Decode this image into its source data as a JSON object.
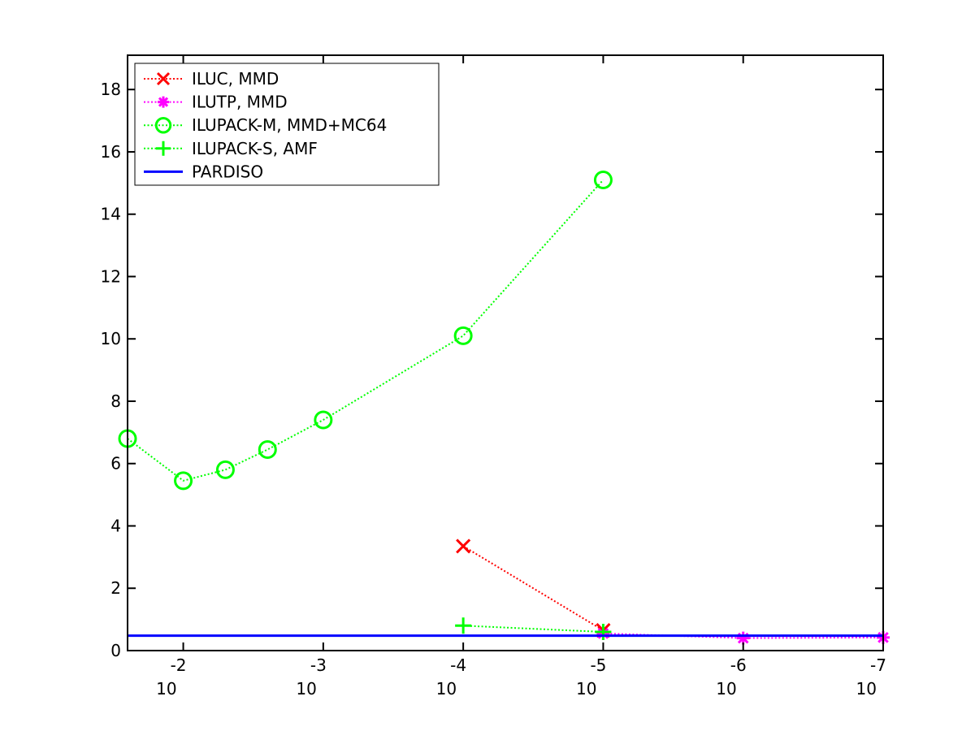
{
  "chart_data": {
    "type": "line",
    "title": "",
    "xlabel": "",
    "ylabel": "",
    "x_scale": "log",
    "x_reversed": true,
    "xlim": [
      0.025,
      1e-07
    ],
    "ylim": [
      0,
      19.1
    ],
    "x_ticks": [
      {
        "value": 0.01,
        "base": "10",
        "exp": "-2"
      },
      {
        "value": 0.001,
        "base": "10",
        "exp": "-3"
      },
      {
        "value": 0.0001,
        "base": "10",
        "exp": "-4"
      },
      {
        "value": 1e-05,
        "base": "10",
        "exp": "-5"
      },
      {
        "value": 1e-06,
        "base": "10",
        "exp": "-6"
      },
      {
        "value": 1e-07,
        "base": "10",
        "exp": "-7"
      }
    ],
    "y_ticks": [
      0,
      2,
      4,
      6,
      8,
      10,
      12,
      14,
      16,
      18
    ],
    "grid": false,
    "legend_position": "top-left",
    "series": [
      {
        "name": "ILUC, MMD",
        "color": "#ff0000",
        "marker": "x",
        "line_style": "dotted",
        "x": [
          0.0001,
          1e-05
        ],
        "y": [
          3.35,
          0.65
        ]
      },
      {
        "name": "ILUTP, MMD",
        "color": "#ff00ff",
        "marker": "asterisk",
        "line_style": "dotted",
        "x": [
          1e-05,
          1e-06,
          1e-07
        ],
        "y": [
          0.55,
          0.4,
          0.42
        ]
      },
      {
        "name": "ILUPACK-M, MMD+MC64",
        "color": "#00ff00",
        "marker": "circle",
        "line_style": "dotted",
        "x": [
          0.025,
          0.01,
          0.005,
          0.0025,
          0.001,
          0.0001,
          1e-05
        ],
        "y": [
          6.8,
          5.45,
          5.8,
          6.45,
          7.4,
          10.1,
          15.1
        ]
      },
      {
        "name": "ILUPACK-S, AMF",
        "color": "#00ff00",
        "marker": "plus",
        "line_style": "dotted",
        "x": [
          0.0001,
          1e-05
        ],
        "y": [
          0.8,
          0.6
        ]
      },
      {
        "name": "PARDISO",
        "color": "#0000ff",
        "marker": "none",
        "line_style": "solid",
        "x": [
          0.025,
          1e-07
        ],
        "y": [
          0.48,
          0.48
        ]
      }
    ]
  }
}
